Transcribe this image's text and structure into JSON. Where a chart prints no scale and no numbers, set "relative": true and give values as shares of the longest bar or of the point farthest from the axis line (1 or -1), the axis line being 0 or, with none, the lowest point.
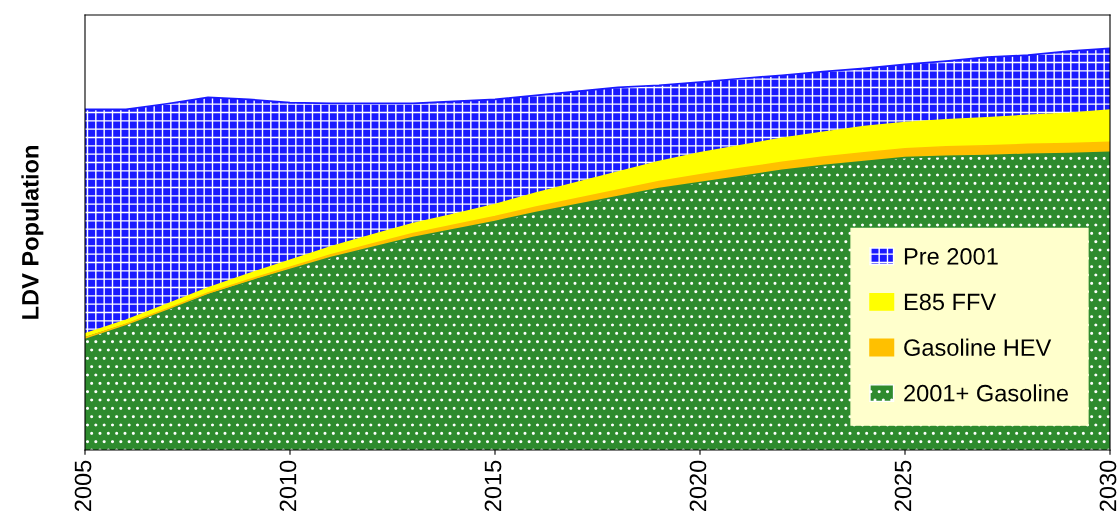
{
  "chart_data": {
    "type": "area",
    "stacked": true,
    "relative": true,
    "ylabel": "LDV Population",
    "x": [
      2005,
      2006,
      2007,
      2008,
      2009,
      2010,
      2011,
      2012,
      2013,
      2014,
      2015,
      2016,
      2017,
      2018,
      2019,
      2020,
      2021,
      2022,
      2023,
      2024,
      2025,
      2026,
      2027,
      2028,
      2029,
      2030
    ],
    "xlim": [
      2005,
      2030
    ],
    "xticks": [
      2005,
      2010,
      2015,
      2020,
      2025,
      2030
    ],
    "tick_labels": "x",
    "legend": "bottom right",
    "grid": false,
    "series": [
      {
        "name": "2001+ Gasoline",
        "color": "#2e8b2e",
        "values": [
          0.279,
          0.312,
          0.349,
          0.387,
          0.419,
          0.449,
          0.479,
          0.504,
          0.529,
          0.549,
          0.569,
          0.591,
          0.611,
          0.631,
          0.651,
          0.666,
          0.681,
          0.696,
          0.708,
          0.718,
          0.728,
          0.731,
          0.733,
          0.736,
          0.738,
          0.741
        ]
      },
      {
        "name": "Gasoline HEV",
        "color": "#ffc000",
        "values": [
          0,
          0.001,
          0.002,
          0.004,
          0.005,
          0.006,
          0.007,
          0.009,
          0.01,
          0.011,
          0.012,
          0.014,
          0.015,
          0.016,
          0.017,
          0.019,
          0.02,
          0.02,
          0.021,
          0.022,
          0.022,
          0.024,
          0.024,
          0.025,
          0.025,
          0.025
        ]
      },
      {
        "name": "E85 FFV",
        "color": "#ffff00",
        "values": [
          0.01,
          0.01,
          0.012,
          0.012,
          0.015,
          0.017,
          0.02,
          0.022,
          0.025,
          0.027,
          0.03,
          0.035,
          0.04,
          0.045,
          0.05,
          0.055,
          0.057,
          0.06,
          0.062,
          0.065,
          0.065,
          0.067,
          0.07,
          0.072,
          0.075,
          0.08
        ]
      },
      {
        "name": "Pre 2001",
        "color": "#1a1aff",
        "values": [
          0.559,
          0.525,
          0.499,
          0.475,
          0.434,
          0.393,
          0.357,
          0.328,
          0.299,
          0.281,
          0.262,
          0.243,
          0.227,
          0.211,
          0.19,
          0.176,
          0.167,
          0.157,
          0.151,
          0.145,
          0.145,
          0.146,
          0.151,
          0.15,
          0.155,
          0.154
        ]
      }
    ]
  }
}
